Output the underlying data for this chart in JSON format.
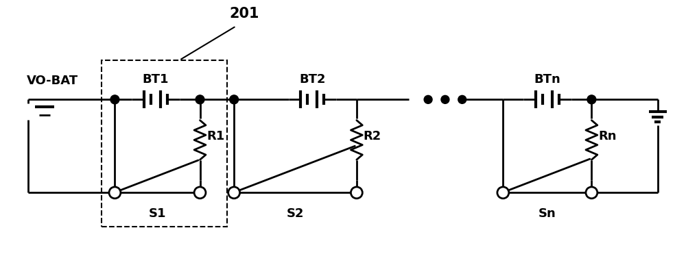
{
  "fig_width": 10.0,
  "fig_height": 3.87,
  "dpi": 100,
  "bg_color": "#ffffff",
  "line_color": "#000000",
  "lw": 2.0,
  "lw_thick": 3.0,
  "labels": {
    "vo_bat": "VO-BAT",
    "bt1": "BT1",
    "bt2": "BT2",
    "btn": "BTn",
    "r1": "R1",
    "r2": "R2",
    "rn": "Rn",
    "s1": "S1",
    "s2": "S2",
    "sn": "Sn",
    "title": "201"
  },
  "font_size": 13,
  "font_size_title": 15,
  "xlim": [
    0,
    10
  ],
  "ylim": [
    0,
    3.87
  ]
}
